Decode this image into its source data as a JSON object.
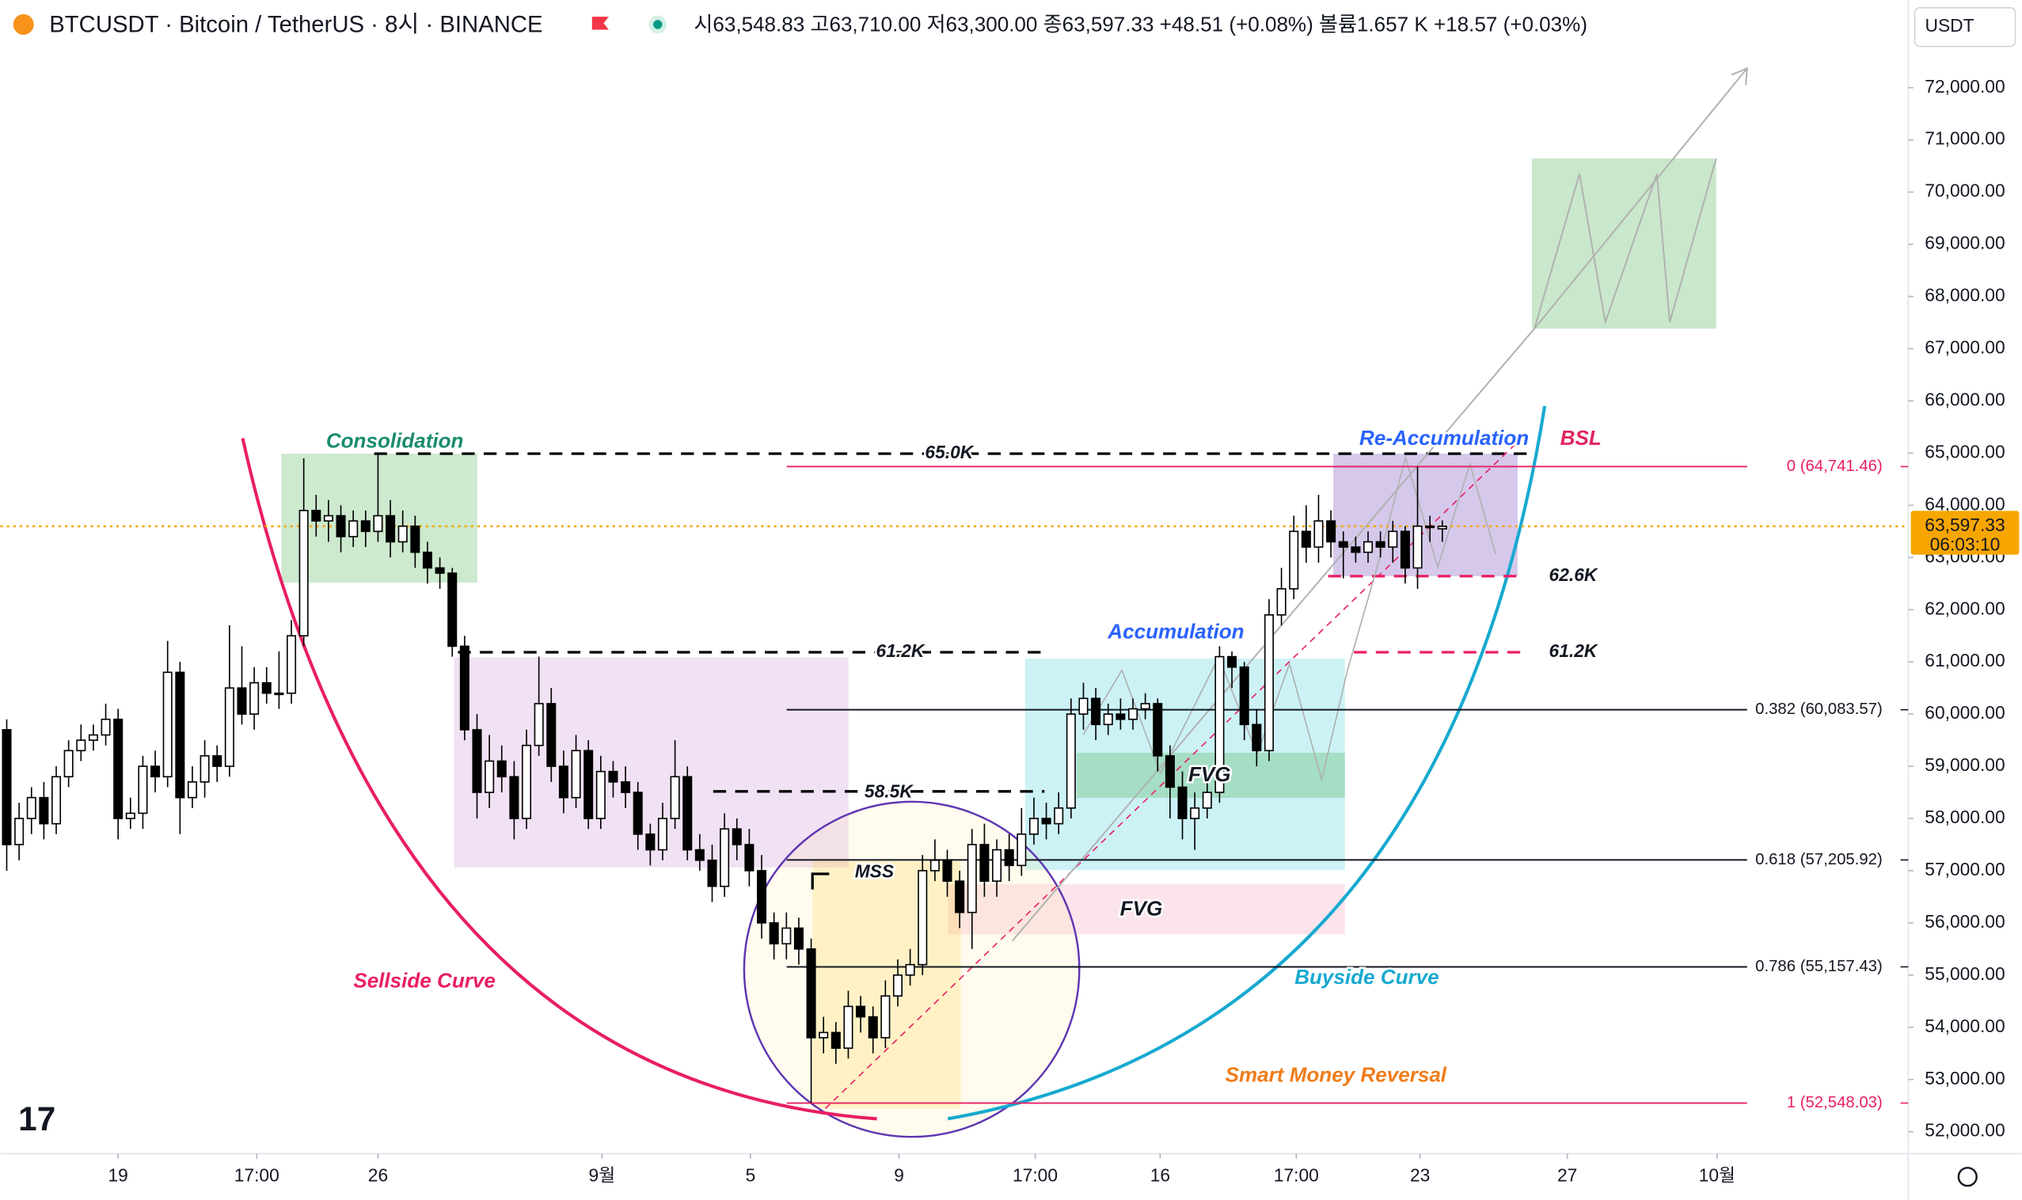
{
  "chart_data": {
    "type": "candlestick",
    "title": "BTCUSDT · Bitcoin / TetherUS · 8시 · BINANCE",
    "quote": "시63,548.83 고63,710.00 저63,300.00 종63,597.33 +48.51 (+0.08%) 볼륨1.657 K +18.57 (+0.03%)",
    "currency": "USDT",
    "last_price": {
      "value": 63597.33,
      "label": "63,597.33"
    },
    "countdown": "06:03:10",
    "ylim": [
      51580,
      73680
    ],
    "yticks": [
      {
        "value": 52000,
        "label": "52,000.00"
      },
      {
        "value": 53000,
        "label": "53,000.00"
      },
      {
        "value": 54000,
        "label": "54,000.00"
      },
      {
        "value": 55000,
        "label": "55,000.00"
      },
      {
        "value": 56000,
        "label": "56,000.00"
      },
      {
        "value": 57000,
        "label": "57,000.00"
      },
      {
        "value": 58000,
        "label": "58,000.00"
      },
      {
        "value": 59000,
        "label": "59,000.00"
      },
      {
        "value": 60000,
        "label": "60,000.00"
      },
      {
        "value": 61000,
        "label": "61,000.00"
      },
      {
        "value": 62000,
        "label": "62,000.00"
      },
      {
        "value": 63000,
        "label": "63,000.00"
      },
      {
        "value": 64000,
        "label": "64,000.00"
      },
      {
        "value": 65000,
        "label": "65,000.00"
      },
      {
        "value": 66000,
        "label": "66,000.00"
      },
      {
        "value": 67000,
        "label": "67,000.00"
      },
      {
        "value": 68000,
        "label": "68,000.00"
      },
      {
        "value": 69000,
        "label": "69,000.00"
      },
      {
        "value": 70000,
        "label": "70,000.00"
      },
      {
        "value": 71000,
        "label": "71,000.00"
      },
      {
        "value": 72000,
        "label": "72,000.00"
      }
    ],
    "xlim": [
      -0.52,
      153.65
    ],
    "xticks": [
      {
        "value": 9,
        "label": "19"
      },
      {
        "value": 20.2,
        "label": "17:00"
      },
      {
        "value": 30,
        "label": "26"
      },
      {
        "value": 48.1,
        "label": "9월"
      },
      {
        "value": 60.1,
        "label": "5"
      },
      {
        "value": 72.1,
        "label": "9"
      },
      {
        "value": 83.1,
        "label": "17:00"
      },
      {
        "value": 93.2,
        "label": "16"
      },
      {
        "value": 104.2,
        "label": "17:00"
      },
      {
        "value": 114.2,
        "label": "23"
      },
      {
        "value": 126.1,
        "label": "27"
      },
      {
        "value": 138.2,
        "label": "10월"
      }
    ],
    "fib_levels": [
      {
        "value": 64741.46,
        "label": "0 (64,741.46)",
        "color": "#e91e63"
      },
      {
        "value": 60083.57,
        "label": "0.382 (60,083.57)",
        "color": "#131722"
      },
      {
        "value": 57205.92,
        "label": "0.618 (57,205.92)",
        "color": "#131722"
      },
      {
        "value": 55157.43,
        "label": "0.786 (55,157.43)",
        "color": "#131722"
      },
      {
        "value": 52548.03,
        "label": "1 (52,548.03)",
        "color": "#e91e63"
      }
    ],
    "annotations": [
      "Consolidation",
      "Re-Accumulation",
      "BSL",
      "Accumulation",
      "65.0K",
      "61.2K",
      "58.5K",
      "62.6K",
      "61.2K",
      "MSS",
      "FVG",
      "FVG",
      "Sellside Curve",
      "Buyside Curve",
      "Smart Money Reversal"
    ],
    "up_color": "#ffffff",
    "down_color": "#000000",
    "ohlc": [
      [
        59700,
        59900,
        57000,
        57500
      ],
      [
        57500,
        58300,
        57200,
        58000
      ],
      [
        58000,
        58600,
        57700,
        58400
      ],
      [
        58400,
        58700,
        57600,
        57900
      ],
      [
        57900,
        59000,
        57700,
        58800
      ],
      [
        58800,
        59500,
        58600,
        59300
      ],
      [
        59300,
        59800,
        59100,
        59500
      ],
      [
        59500,
        59800,
        59300,
        59600
      ],
      [
        59600,
        60200,
        59400,
        59900
      ],
      [
        59900,
        60100,
        57600,
        58000
      ],
      [
        58000,
        58400,
        57800,
        58100
      ],
      [
        58100,
        59200,
        57800,
        59000
      ],
      [
        59000,
        59300,
        58500,
        58800
      ],
      [
        58800,
        61400,
        58600,
        60800
      ],
      [
        60800,
        61000,
        57700,
        58400
      ],
      [
        58400,
        59000,
        58200,
        58700
      ],
      [
        58700,
        59500,
        58400,
        59200
      ],
      [
        59200,
        59400,
        58700,
        59000
      ],
      [
        59000,
        61700,
        58800,
        60500
      ],
      [
        60500,
        61300,
        59800,
        60000
      ],
      [
        60000,
        60900,
        59700,
        60600
      ],
      [
        60600,
        60900,
        60200,
        60400
      ],
      [
        60400,
        61200,
        60100,
        60400
      ],
      [
        60400,
        61800,
        60200,
        61500
      ],
      [
        61500,
        64900,
        61300,
        63900
      ],
      [
        63900,
        64200,
        63400,
        63700
      ],
      [
        63700,
        64100,
        63300,
        63800
      ],
      [
        63800,
        64000,
        63100,
        63400
      ],
      [
        63400,
        63900,
        63200,
        63700
      ],
      [
        63700,
        63900,
        63200,
        63500
      ],
      [
        63500,
        65000,
        63300,
        63800
      ],
      [
        63800,
        64100,
        63000,
        63300
      ],
      [
        63300,
        63900,
        63100,
        63600
      ],
      [
        63600,
        63800,
        62800,
        63100
      ],
      [
        63100,
        63300,
        62500,
        62800
      ],
      [
        62800,
        63000,
        62400,
        62700
      ],
      [
        62700,
        62800,
        61100,
        61300
      ],
      [
        61300,
        61500,
        59500,
        59700
      ],
      [
        59700,
        60000,
        58000,
        58500
      ],
      [
        58500,
        59600,
        58200,
        59100
      ],
      [
        59100,
        59400,
        58500,
        58800
      ],
      [
        58800,
        59100,
        57600,
        58000
      ],
      [
        58000,
        59700,
        57800,
        59400
      ],
      [
        59400,
        61100,
        59200,
        60200
      ],
      [
        60200,
        60500,
        58700,
        59000
      ],
      [
        59000,
        59300,
        58100,
        58400
      ],
      [
        58400,
        59600,
        58200,
        59300
      ],
      [
        59300,
        59500,
        57800,
        58000
      ],
      [
        58000,
        59200,
        57800,
        58900
      ],
      [
        58900,
        59100,
        58400,
        58700
      ],
      [
        58700,
        59000,
        58200,
        58500
      ],
      [
        58500,
        58700,
        57400,
        57700
      ],
      [
        57700,
        57900,
        57100,
        57400
      ],
      [
        57400,
        58300,
        57200,
        58000
      ],
      [
        58000,
        59500,
        57800,
        58800
      ],
      [
        58800,
        59000,
        57200,
        57400
      ],
      [
        57400,
        57700,
        57000,
        57200
      ],
      [
        57200,
        57500,
        56400,
        56700
      ],
      [
        56700,
        58100,
        56500,
        57800
      ],
      [
        57800,
        58000,
        57200,
        57500
      ],
      [
        57500,
        57800,
        56700,
        57000
      ],
      [
        57000,
        57300,
        55700,
        56000
      ],
      [
        56000,
        56200,
        55300,
        55600
      ],
      [
        55600,
        56200,
        55300,
        55900
      ],
      [
        55900,
        56100,
        55200,
        55500
      ],
      [
        55500,
        55700,
        52548,
        53800
      ],
      [
        53800,
        54200,
        53500,
        53900
      ],
      [
        53900,
        54100,
        53300,
        53600
      ],
      [
        53600,
        54700,
        53400,
        54400
      ],
      [
        54400,
        54600,
        53900,
        54200
      ],
      [
        54200,
        54400,
        53500,
        53800
      ],
      [
        53800,
        54900,
        53600,
        54600
      ],
      [
        54600,
        55300,
        54400,
        55000
      ],
      [
        55000,
        55500,
        54800,
        55200
      ],
      [
        55200,
        57300,
        55000,
        57000
      ],
      [
        57000,
        57600,
        56800,
        57200
      ],
      [
        57200,
        57400,
        56500,
        56800
      ],
      [
        56800,
        57000,
        55900,
        56200
      ],
      [
        56200,
        57800,
        55500,
        57500
      ],
      [
        57500,
        57900,
        56500,
        56800
      ],
      [
        56800,
        57600,
        56500,
        57400
      ],
      [
        57400,
        57700,
        56800,
        57100
      ],
      [
        57100,
        58200,
        56900,
        57700
      ],
      [
        57700,
        58400,
        57500,
        58000
      ],
      [
        58000,
        58300,
        57600,
        57900
      ],
      [
        57900,
        58500,
        57700,
        58200
      ],
      [
        58200,
        60300,
        58000,
        60000
      ],
      [
        60000,
        60600,
        59700,
        60300
      ],
      [
        60300,
        60500,
        59500,
        59800
      ],
      [
        59800,
        60200,
        59600,
        60000
      ],
      [
        60000,
        60300,
        59700,
        59900
      ],
      [
        59900,
        60300,
        59700,
        60100
      ],
      [
        60100,
        60400,
        59900,
        60200
      ],
      [
        60200,
        60300,
        58900,
        59200
      ],
      [
        59200,
        59400,
        58000,
        58600
      ],
      [
        58600,
        58900,
        57600,
        58000
      ],
      [
        58000,
        58500,
        57400,
        58200
      ],
      [
        58200,
        58800,
        58000,
        58500
      ],
      [
        58500,
        61300,
        58300,
        61100
      ],
      [
        61100,
        61200,
        60500,
        60900
      ],
      [
        60900,
        61000,
        59500,
        59800
      ],
      [
        59800,
        60100,
        59000,
        59300
      ],
      [
        59300,
        62200,
        59100,
        61900
      ],
      [
        61900,
        62800,
        61700,
        62400
      ],
      [
        62400,
        63800,
        62200,
        63500
      ],
      [
        63500,
        64000,
        62900,
        63200
      ],
      [
        63200,
        64200,
        62900,
        63700
      ],
      [
        63700,
        63900,
        63000,
        63300
      ],
      [
        63300,
        63500,
        62600,
        63200
      ],
      [
        63200,
        63400,
        62900,
        63100
      ],
      [
        63100,
        63500,
        62900,
        63300
      ],
      [
        63300,
        63500,
        63000,
        63200
      ],
      [
        63200,
        63700,
        62900,
        63500
      ],
      [
        63500,
        63600,
        62500,
        62800
      ],
      [
        62800,
        64741.46,
        62400,
        63600
      ],
      [
        63600,
        63800,
        63300,
        63600
      ],
      [
        63548.83,
        63710,
        63300,
        63597.33
      ]
    ]
  }
}
